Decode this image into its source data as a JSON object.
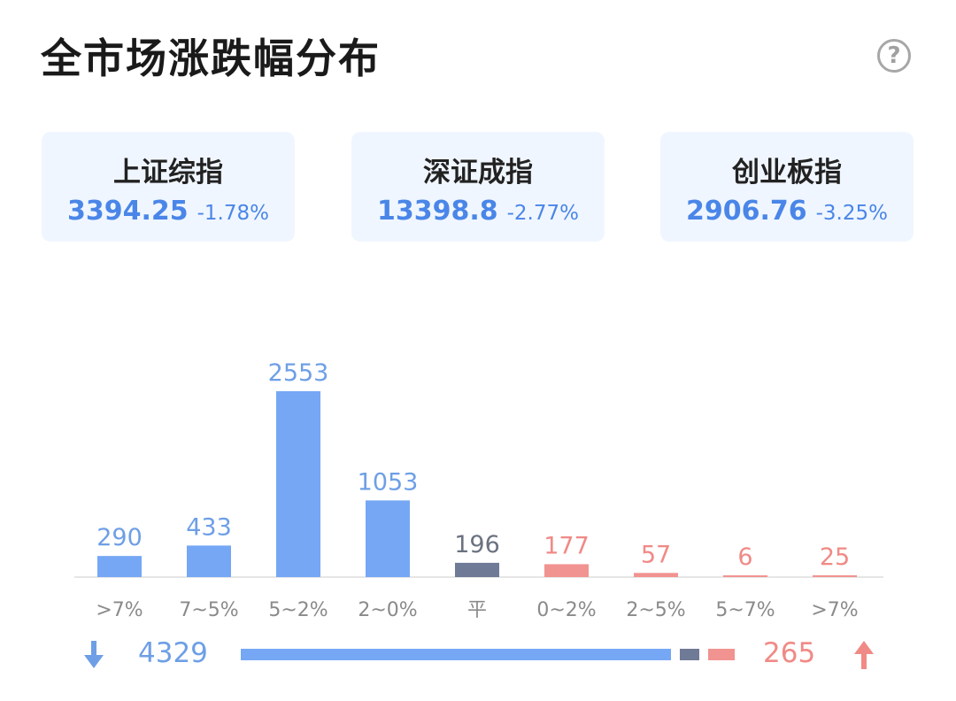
{
  "header": {
    "title": "全市场涨跌幅分布",
    "help_icon": "question-circle-icon",
    "help_symbol": "?"
  },
  "indices": [
    {
      "name": "上证综指",
      "price": "3394.25",
      "change": "-1.78%"
    },
    {
      "name": "深证成指",
      "price": "13398.8",
      "change": "-2.77%"
    },
    {
      "name": "创业板指",
      "price": "2906.76",
      "change": "-3.25%"
    }
  ],
  "colors": {
    "down": "#75a7f5",
    "flat": "#6f7a96",
    "up": "#f19390",
    "down_text": "#6e9fe6",
    "flat_text": "#6b7280",
    "up_text": "#f08a86",
    "axis_text": "#8a8a8a"
  },
  "chart_data": {
    "type": "bar",
    "categories": [
      ">7%",
      "7~5%",
      "5~2%",
      "2~0%",
      "平",
      "0~2%",
      "2~5%",
      "5~7%",
      ">7%"
    ],
    "values": [
      290,
      433,
      2553,
      1053,
      196,
      177,
      57,
      6,
      25
    ],
    "groups": [
      "down",
      "down",
      "down",
      "down",
      "flat",
      "up",
      "up",
      "up",
      "up"
    ],
    "ylim": [
      0,
      2553
    ]
  },
  "summary": {
    "down_icon": "arrow-down-icon",
    "up_icon": "arrow-up-icon",
    "down_total": "4329",
    "up_total": "265",
    "flat_total": 196
  }
}
